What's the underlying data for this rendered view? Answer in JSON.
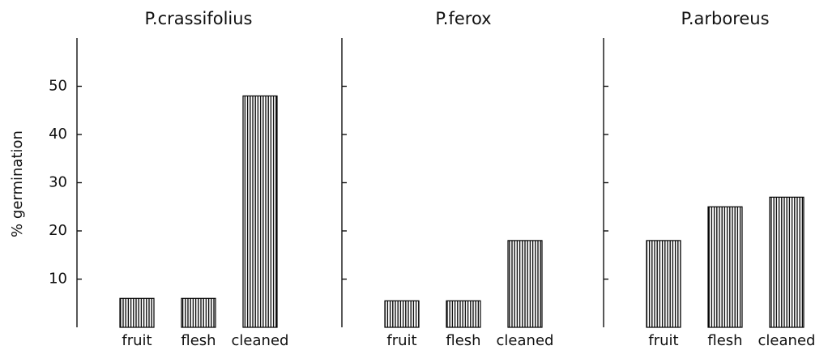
{
  "chart_data": [
    {
      "type": "bar",
      "title": "P.crassifolius",
      "y_label": "% germination",
      "categories": [
        "fruit",
        "flesh",
        "cleaned"
      ],
      "values": [
        6,
        6,
        48
      ],
      "ylim": [
        0,
        60
      ],
      "yticks": [
        10,
        20,
        30,
        40,
        50
      ],
      "color": "#000000"
    },
    {
      "type": "bar",
      "title": "P.ferox",
      "categories": [
        "fruit",
        "flesh",
        "cleaned"
      ],
      "values": [
        5.5,
        5.5,
        18
      ],
      "ylim": [
        0,
        60
      ],
      "yticks": [
        10,
        20,
        30,
        40,
        50
      ],
      "color": "#000000"
    },
    {
      "type": "bar",
      "title": "P.arboreus",
      "categories": [
        "fruit",
        "flesh",
        "cleaned"
      ],
      "values": [
        18,
        25,
        27
      ],
      "ylim": [
        0,
        60
      ],
      "yticks": [
        10,
        20,
        30,
        40,
        50
      ],
      "color": "#000000"
    }
  ]
}
